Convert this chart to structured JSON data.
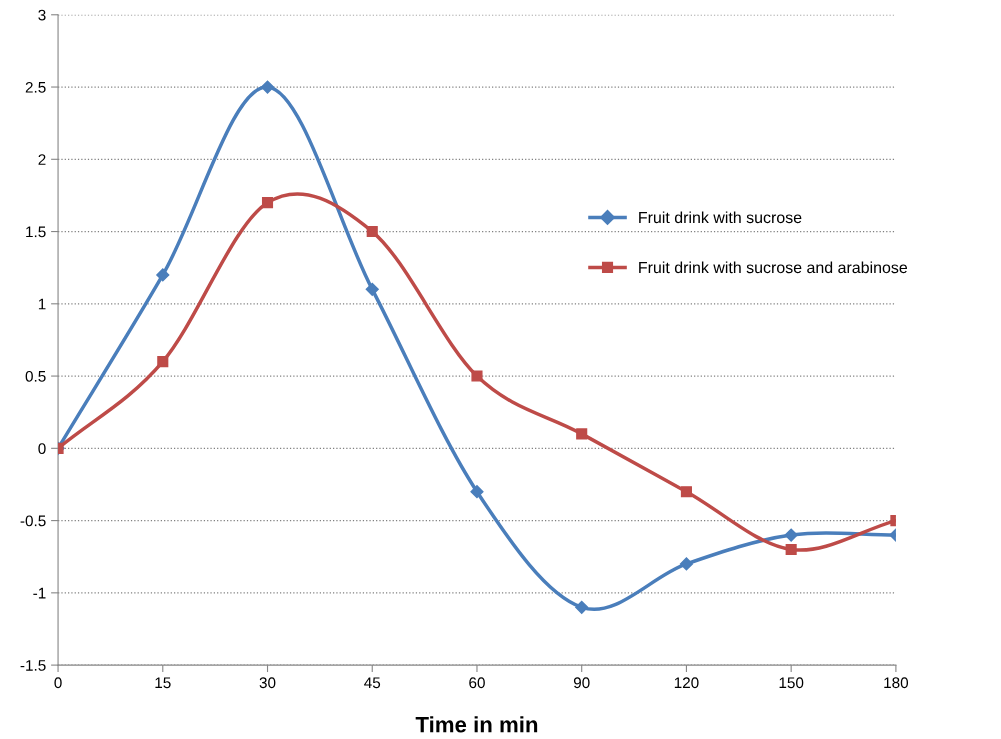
{
  "chart_data": {
    "type": "line",
    "xlabel": "Time in min",
    "categories": [
      "0",
      "15",
      "30",
      "45",
      "60",
      "90",
      "120",
      "150",
      "180"
    ],
    "series": [
      {
        "name": "Fruit drink with sucrose",
        "color": "#4a7ebb",
        "marker": "diamond",
        "values": [
          0,
          1.2,
          2.5,
          1.1,
          -0.3,
          -1.1,
          -0.8,
          -0.6,
          -0.6
        ]
      },
      {
        "name": "Fruit drink with sucrose and arabinose",
        "color": "#be4b48",
        "marker": "square",
        "values": [
          0,
          0.6,
          1.7,
          1.5,
          0.5,
          0.1,
          -0.3,
          -0.7,
          -0.5
        ]
      }
    ],
    "ylim": [
      -1.5,
      3
    ],
    "yticks": [
      -1.5,
      -1,
      -0.5,
      0,
      0.5,
      1,
      1.5,
      2,
      2.5,
      3
    ],
    "grid": "y",
    "legend": "right",
    "line_style": "solid"
  }
}
